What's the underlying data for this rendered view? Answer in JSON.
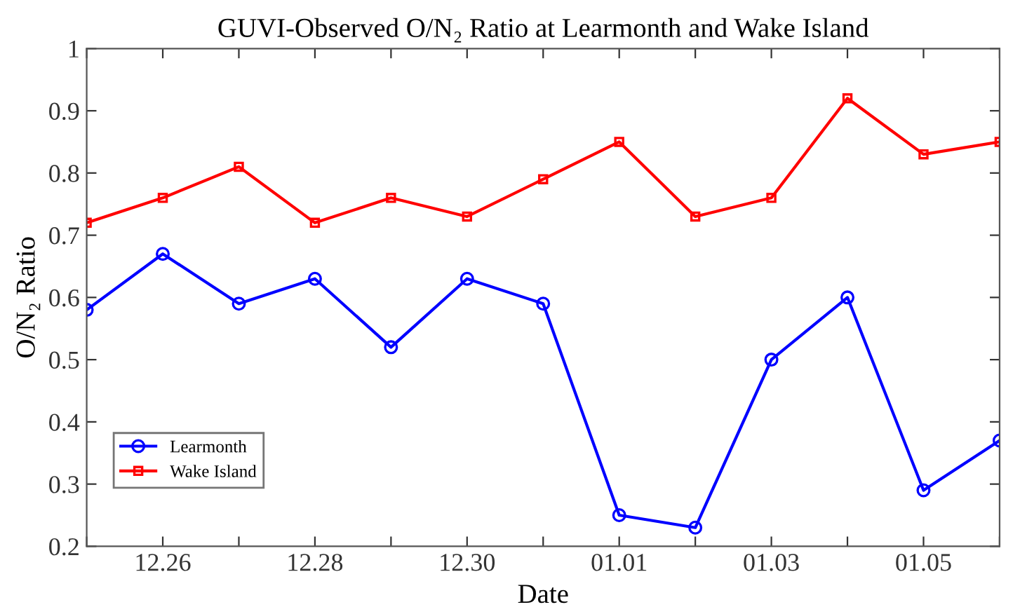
{
  "chart_data": {
    "type": "line",
    "title": "GUVI-Observed O/N₂ Ratio at Learmonth and Wake Island",
    "xlabel": "Date",
    "ylabel": "O/N₂ Ratio",
    "categories": [
      null,
      "12.26",
      null,
      "12.28",
      null,
      "12.30",
      null,
      "01.01",
      null,
      "01.03",
      null,
      "01.05",
      null
    ],
    "series": [
      {
        "name": "Learmonth",
        "color": "#0000ff",
        "marker": "circle",
        "values": [
          0.58,
          0.67,
          0.59,
          0.63,
          0.52,
          0.63,
          0.59,
          0.25,
          0.23,
          0.5,
          0.6,
          0.29,
          0.37
        ]
      },
      {
        "name": "Wake Island",
        "color": "#ff0000",
        "marker": "square",
        "values": [
          0.72,
          0.76,
          0.81,
          0.72,
          0.76,
          0.73,
          0.79,
          0.85,
          0.73,
          0.76,
          0.92,
          0.83,
          0.85
        ]
      }
    ],
    "ylim": [
      0.2,
      1
    ],
    "yticks": [
      0.2,
      0.3,
      0.4,
      0.5,
      0.6,
      0.7,
      0.8,
      0.9,
      1
    ],
    "grid": false,
    "legend": "bottom left",
    "line_style": "solid"
  }
}
